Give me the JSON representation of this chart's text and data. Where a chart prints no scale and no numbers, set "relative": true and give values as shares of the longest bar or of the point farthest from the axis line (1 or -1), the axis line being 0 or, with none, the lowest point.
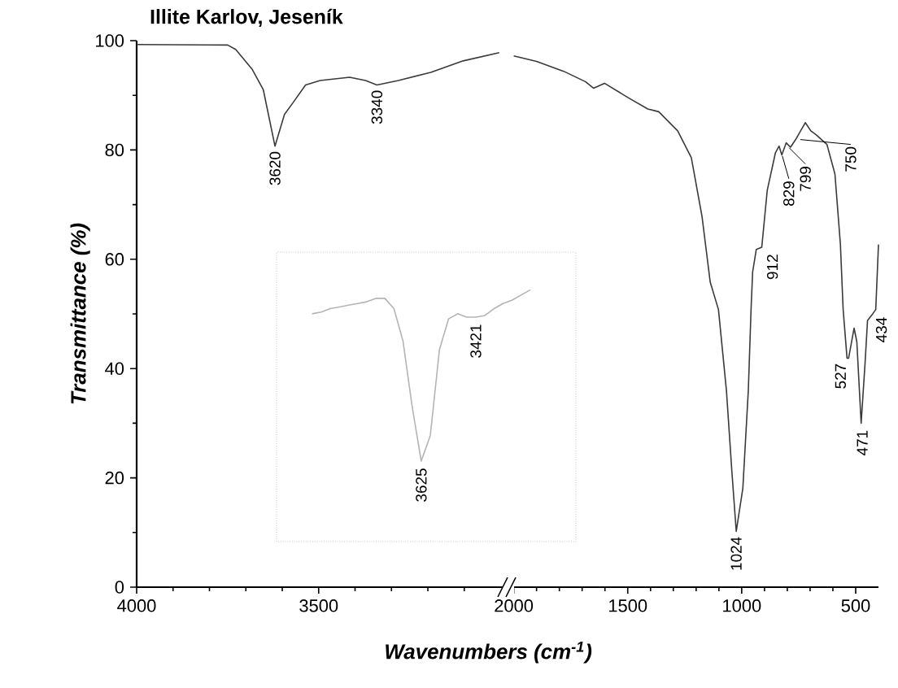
{
  "chart_data": [
    {
      "type": "line",
      "title": "Illite Karlov, Jeseník",
      "xlabel": "Wavenumbers (cm$^{-1}$)",
      "ylabel": "Transmittance (%)",
      "color": "#3a3a3a",
      "x": [
        4000,
        3750,
        3728,
        3683,
        3652,
        3620,
        3594,
        3571,
        3536,
        3496,
        3415,
        3371,
        3340,
        3281,
        3192,
        3103,
        3004
      ],
      "values": [
        99.3,
        99.2,
        98.4,
        94.8,
        91.0,
        80.7,
        86.5,
        88.6,
        91.9,
        92.7,
        93.3,
        92.7,
        91.9,
        92.7,
        94.2,
        96.3,
        97.8
      ],
      "xlim": [
        4000,
        2990
      ],
      "xticks": [
        4000,
        {
          "value": 3900,
          "label": null
        },
        {
          "value": 3800,
          "label": null
        },
        {
          "value": 3700,
          "label": null
        },
        {
          "value": 3600,
          "label": null
        },
        3500,
        {
          "value": 3400,
          "label": null
        },
        {
          "value": 3300,
          "label": null
        },
        {
          "value": 3200,
          "label": null
        },
        {
          "value": 3100,
          "label": null
        }
      ],
      "ylim": [
        0,
        100
      ],
      "yticks": [
        0,
        {
          "value": 10,
          "label": null
        },
        20,
        {
          "value": 30,
          "label": null
        },
        40,
        {
          "value": 50,
          "label": null
        },
        60,
        {
          "value": 70,
          "label": null
        },
        80,
        {
          "value": 90,
          "label": null
        },
        100
      ],
      "annotations": [
        {
          "text": "3620",
          "x": 3620,
          "y": 80.7
        },
        {
          "text": "3340",
          "x": 3340,
          "y": 91.9
        }
      ]
    },
    {
      "type": "line",
      "color": "#3a3a3a",
      "tick_labels": "x",
      "x": [
        2000,
        1900,
        1781,
        1686,
        1650,
        1602,
        1495,
        1412,
        1364,
        1281,
        1221,
        1174,
        1138,
        1102,
        1067,
        1043,
        1024,
        995,
        971,
        959,
        952,
        936,
        912,
        888,
        852,
        836,
        824,
        805,
        786,
        762,
        721,
        697,
        674,
        626,
        591,
        567,
        555,
        538,
        531,
        507,
        495,
        476,
        459,
        448,
        429,
        412,
        400
      ],
      "values": [
        97.2,
        96.2,
        94.4,
        92.5,
        91.3,
        92.2,
        89.5,
        87.5,
        87.0,
        83.5,
        78.6,
        67.8,
        55.8,
        50.8,
        36.0,
        21.1,
        10.2,
        18.1,
        36.0,
        50.8,
        57.7,
        61.8,
        62.2,
        72.6,
        79.5,
        80.7,
        79.1,
        81.3,
        80.5,
        82.0,
        85.0,
        83.5,
        82.8,
        81.0,
        75.6,
        62.7,
        50.8,
        41.9,
        41.9,
        47.4,
        44.9,
        30.0,
        40.9,
        48.8,
        49.8,
        50.8,
        62.7
      ],
      "xlim": [
        2020,
        400
      ],
      "xticks": [
        2000,
        {
          "value": 1900,
          "label": null
        },
        {
          "value": 1800,
          "label": null
        },
        {
          "value": 1700,
          "label": null
        },
        {
          "value": 1600,
          "label": null
        },
        1500,
        {
          "value": 1400,
          "label": null
        },
        {
          "value": 1300,
          "label": null
        },
        {
          "value": 1200,
          "label": null
        },
        {
          "value": 1100,
          "label": null
        },
        1000,
        {
          "value": 900,
          "label": null
        },
        {
          "value": 800,
          "label": null
        },
        {
          "value": 700,
          "label": null
        },
        {
          "value": 600,
          "label": null
        },
        500
      ],
      "ylim": [
        0,
        100
      ],
      "annotations": [
        {
          "text": "1024",
          "x": 1024,
          "y": 10.2
        },
        {
          "text": "912",
          "x": 912,
          "y": 62.2
        },
        {
          "text": "829",
          "x": 829,
          "y": 79.5
        },
        {
          "text": "799",
          "x": 799,
          "y": 81.0
        },
        {
          "text": "750",
          "x": 750,
          "y": 82.5
        },
        {
          "text": "527",
          "x": 527,
          "y": 41.9
        },
        {
          "text": "471",
          "x": 471,
          "y": 30.0
        },
        {
          "text": "434",
          "x": 434,
          "y": 49.8
        }
      ]
    },
    {
      "type": "line",
      "relative": true,
      "color": "#b4b4b4",
      "categories": [
        null,
        null,
        null,
        null,
        null,
        null,
        null,
        null,
        null,
        null,
        null,
        null,
        null,
        null,
        null,
        null,
        null,
        null,
        null,
        null,
        null,
        null,
        null,
        null,
        null
      ],
      "values": [
        0.86,
        0.87,
        0.89,
        0.9,
        0.91,
        0.92,
        0.93,
        0.95,
        0.95,
        0.89,
        0.7,
        0.32,
        0.0,
        0.15,
        0.65,
        0.83,
        0.86,
        0.84,
        0.84,
        0.85,
        0.89,
        0.92,
        0.94,
        0.97,
        1.0
      ],
      "annotations": [
        "3625",
        "3421"
      ]
    }
  ]
}
